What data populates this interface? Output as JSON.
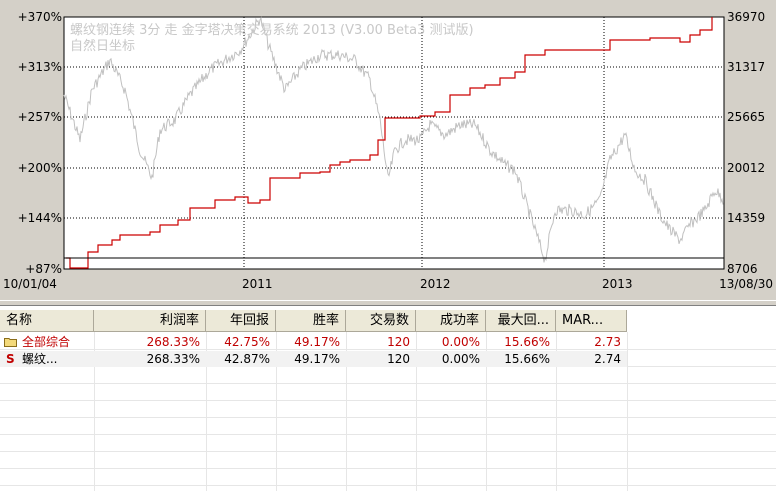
{
  "chart": {
    "watermark_title": "螺纹钢连续  3分  走  金字塔决策交易系统 2013 (V3.00 Beta3 测试版)",
    "watermark_subtitle": "自然日坐标",
    "left_axis_labels": [
      "+370%",
      "+313%",
      "+257%",
      "+200%",
      "+144%",
      "+87%"
    ],
    "right_axis_labels": [
      "36970",
      "31317",
      "25665",
      "20012",
      "14359",
      "8706"
    ],
    "x_start_label": "10/01/04",
    "x_end_label": "13/08/30",
    "x_year_labels": [
      "2011",
      "2012",
      "2013"
    ],
    "colors": {
      "equity_line": "#cc0000",
      "price_line": "#c0c0c0",
      "grid": "#000000",
      "panel": "#d4d0c8"
    }
  },
  "table": {
    "headers": [
      "名称",
      "利润率",
      "年回报",
      "胜率",
      "交易数",
      "成功率",
      "最大回...",
      "MAR..."
    ],
    "rows": [
      {
        "icon": "folder-icon",
        "name": "全部综合",
        "profit": "268.33%",
        "annual": "42.75%",
        "winrate": "49.17%",
        "trades": "120",
        "success": "0.00%",
        "drawdown": "15.66%",
        "mar": "2.73",
        "color": "#c00000"
      },
      {
        "icon": "strategy-s-icon",
        "name": "螺纹...",
        "profit": "268.33%",
        "annual": "42.87%",
        "winrate": "49.17%",
        "trades": "120",
        "success": "0.00%",
        "drawdown": "15.66%",
        "mar": "2.74",
        "color": "#000000"
      }
    ]
  }
}
